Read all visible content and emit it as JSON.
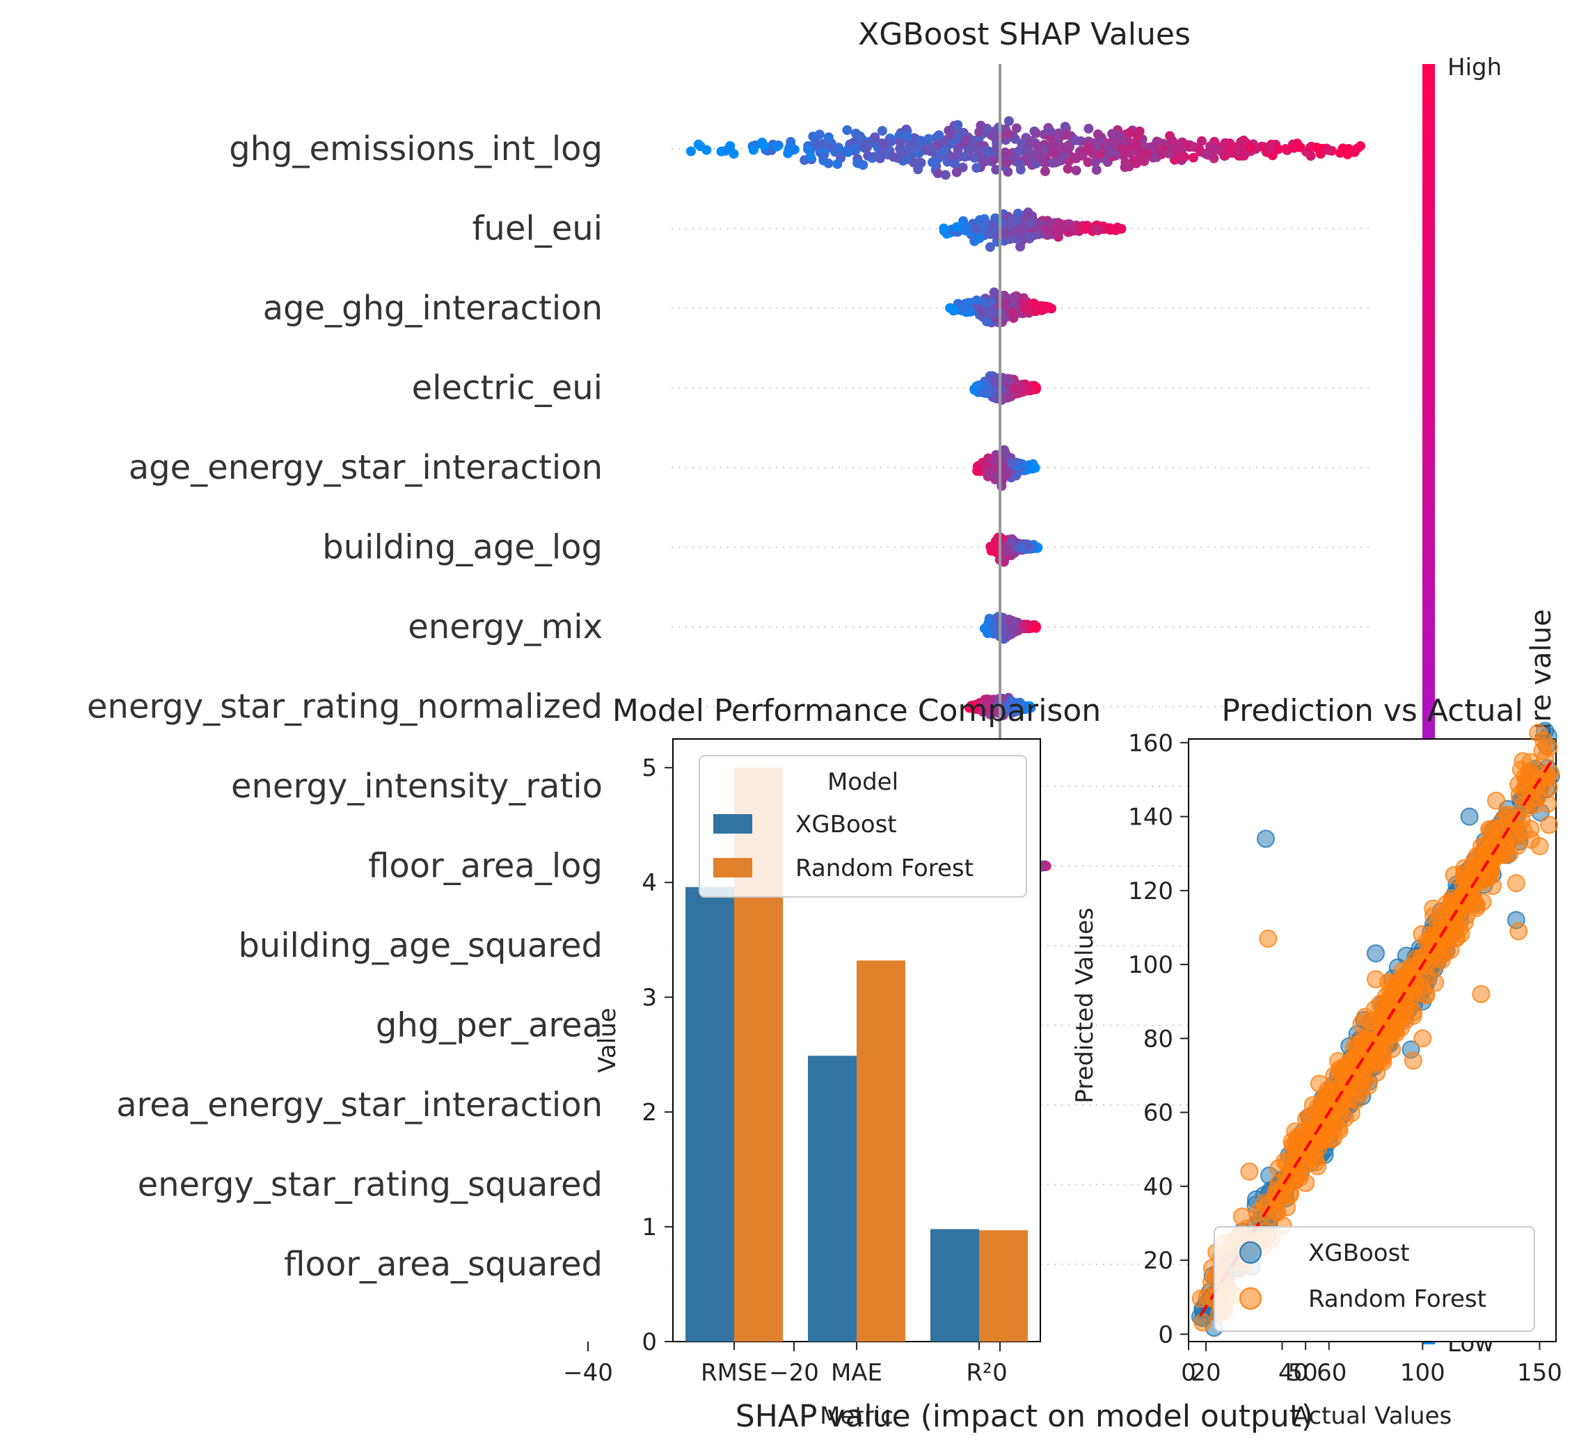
{
  "chart_data": [
    {
      "type": "scatter",
      "subtype": "shap-beeswarm",
      "title": "XGBoost SHAP Values",
      "xlabel": "SHAP value (impact on model output)",
      "xticks": [
        "−40",
        "−20",
        "0",
        "20"
      ],
      "xlim": [
        -44,
        28
      ],
      "colorbar": {
        "label": "Feature value",
        "high": "High",
        "low": "Low",
        "colors": [
          "#008bfb",
          "#ff0052"
        ]
      },
      "features": [
        {
          "name": "ghg_emissions_int_log",
          "min": -30,
          "max": 35,
          "spread": 1.0,
          "highSide": "right"
        },
        {
          "name": "fuel_eui",
          "min": -6,
          "max": 12,
          "spread": 0.55,
          "highSide": "right"
        },
        {
          "name": "age_ghg_interaction",
          "min": -5,
          "max": 5,
          "spread": 0.55,
          "highSide": "right"
        },
        {
          "name": "electric_eui",
          "min": -2.5,
          "max": 3.5,
          "spread": 0.5,
          "highSide": "right"
        },
        {
          "name": "age_energy_star_interaction",
          "min": -2.5,
          "max": 3.5,
          "spread": 0.5,
          "highSide": "left"
        },
        {
          "name": "building_age_log",
          "min": -1,
          "max": 4,
          "spread": 0.45,
          "highSide": "left"
        },
        {
          "name": "energy_mix",
          "min": -1.5,
          "max": 3.5,
          "spread": 0.45,
          "highSide": "right"
        },
        {
          "name": "energy_star_rating_normalized",
          "min": -3,
          "max": 3,
          "spread": 0.4,
          "highSide": "left"
        },
        {
          "name": "energy_intensity_ratio",
          "min": -1,
          "max": 1,
          "spread": 0.3,
          "highSide": "right"
        },
        {
          "name": "floor_area_log",
          "min": 4,
          "max": 4.5,
          "spread": 0.1,
          "highSide": "right"
        },
        {
          "name": "building_age_squared",
          "min": 0,
          "max": 0,
          "spread": 0.0,
          "highSide": "right"
        },
        {
          "name": "ghg_per_area",
          "min": 0,
          "max": 0,
          "spread": 0.0,
          "highSide": "right"
        },
        {
          "name": "area_energy_star_interaction",
          "min": 0,
          "max": 0,
          "spread": 0.0,
          "highSide": "right"
        },
        {
          "name": "energy_star_rating_squared",
          "min": 0,
          "max": 0,
          "spread": 0.0,
          "highSide": "right"
        },
        {
          "name": "floor_area_squared",
          "min": 0,
          "max": 0,
          "spread": 0.0,
          "highSide": "right"
        }
      ]
    },
    {
      "type": "bar",
      "title": "Model Performance Comparison",
      "xlabel": "Metric",
      "ylabel": "Value",
      "categories": [
        "RMSE",
        "MAE",
        "R²"
      ],
      "ylim": [
        0,
        5.25
      ],
      "yticks": [
        0,
        1,
        2,
        3,
        4,
        5
      ],
      "legend": {
        "title": "Model",
        "position": "top"
      },
      "series": [
        {
          "name": "XGBoost",
          "values": [
            3.96,
            2.49,
            0.98
          ],
          "color": "#3274a1"
        },
        {
          "name": "Random Forest",
          "values": [
            5.0,
            3.32,
            0.97
          ],
          "color": "#e1812c"
        }
      ]
    },
    {
      "type": "scatter",
      "title": "Prediction vs Actual",
      "xlabel": "Actual Values",
      "ylabel": "Predicted Values",
      "xlim": [
        0,
        157
      ],
      "ylim": [
        -2,
        161
      ],
      "xticks": [
        0,
        40,
        50,
        60,
        100,
        150
      ],
      "yticks": [
        0,
        20,
        40,
        60,
        80,
        100,
        120,
        140,
        160
      ],
      "legend": {
        "position": "bottom-right"
      },
      "reference_line": {
        "from": [
          5,
          5
        ],
        "to": [
          155,
          155
        ],
        "color": "#ff0000",
        "style": "dashed"
      },
      "series": [
        {
          "name": "XGBoost",
          "color": "#1f77b4",
          "range": [
            5,
            155
          ],
          "noise": 4.0,
          "outliers": [
            [
              33,
              134
            ],
            [
              120,
              140
            ],
            [
              60,
              57
            ],
            [
              95,
              77
            ],
            [
              140,
              112
            ],
            [
              96,
              100
            ],
            [
              80,
              103
            ],
            [
              100,
              90
            ],
            [
              75,
              85
            ]
          ]
        },
        {
          "name": "Random Forest",
          "color": "#ff7f0e",
          "range": [
            5,
            155
          ],
          "noise": 4.5,
          "outliers": [
            [
              34,
              107
            ],
            [
              125,
              92
            ],
            [
              96,
              74
            ],
            [
              140,
              122
            ],
            [
              141,
              109
            ],
            [
              26,
              44
            ],
            [
              150,
              132
            ],
            [
              100,
              80
            ],
            [
              80,
              96
            ]
          ]
        }
      ]
    }
  ]
}
